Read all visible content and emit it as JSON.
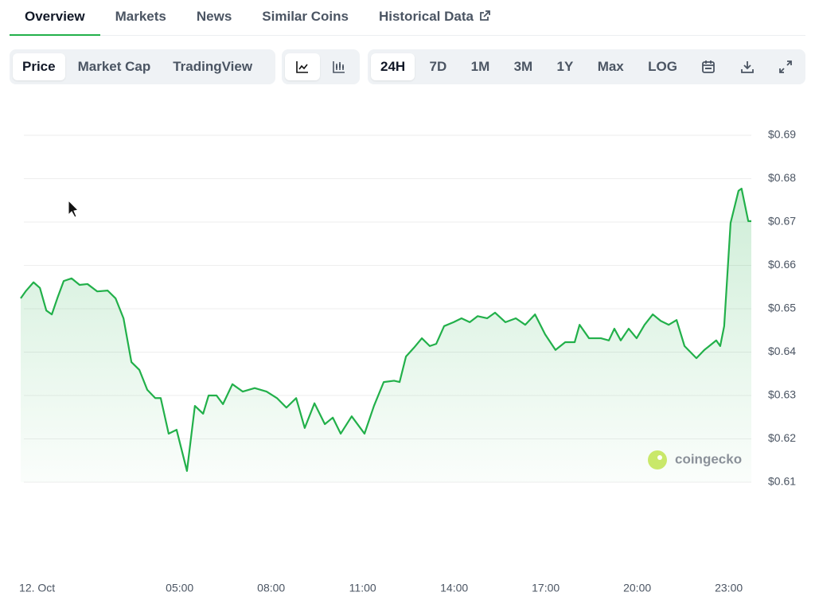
{
  "tabs": [
    "Overview",
    "Markets",
    "News",
    "Similar Coins",
    "Historical Data"
  ],
  "chart_tabs": [
    "Price",
    "Market Cap",
    "TradingView"
  ],
  "ranges": [
    "24H",
    "7D",
    "1M",
    "3M",
    "1Y",
    "Max",
    "LOG"
  ],
  "watermark": "coingecko",
  "chart_data": {
    "type": "line",
    "x": [
      -0.21,
      -0.05,
      0.21,
      0.42,
      0.63,
      0.81,
      0.99,
      1.2,
      1.46,
      1.72,
      1.98,
      2.3,
      2.64,
      2.9,
      3.16,
      3.42,
      3.68,
      3.94,
      4.2,
      4.38,
      4.64,
      4.9,
      5.24,
      5.5,
      5.77,
      5.95,
      6.21,
      6.42,
      6.73,
      7.07,
      7.46,
      7.85,
      8.19,
      8.5,
      8.82,
      9.1,
      9.42,
      9.76,
      10.02,
      10.28,
      10.64,
      11.06,
      11.37,
      11.69,
      12.03,
      12.21,
      12.42,
      12.68,
      12.94,
      13.2,
      13.41,
      13.67,
      13.98,
      14.24,
      14.51,
      14.77,
      15.08,
      15.34,
      15.68,
      16.02,
      16.33,
      16.65,
      16.98,
      17.32,
      17.64,
      17.95,
      18.11,
      18.42,
      18.81,
      19.07,
      19.25,
      19.46,
      19.72,
      19.98,
      20.24,
      20.51,
      20.77,
      21.03,
      21.29,
      21.55,
      21.94,
      22.2,
      22.59,
      22.72,
      22.85,
      23.06,
      23.32,
      23.42,
      23.64,
      23.74
    ],
    "series": [
      {
        "color": "#22b04a",
        "values": [
          0.6524,
          0.654,
          0.6561,
          0.6548,
          0.6496,
          0.6487,
          0.6524,
          0.6564,
          0.657,
          0.6555,
          0.6557,
          0.654,
          0.6542,
          0.6524,
          0.6478,
          0.6377,
          0.6359,
          0.6313,
          0.6294,
          0.6294,
          0.6212,
          0.6221,
          0.6126,
          0.6276,
          0.6258,
          0.63,
          0.63,
          0.628,
          0.6326,
          0.6309,
          0.6317,
          0.6309,
          0.6294,
          0.6272,
          0.6294,
          0.6225,
          0.6282,
          0.6234,
          0.6249,
          0.6212,
          0.6252,
          0.6212,
          0.6276,
          0.6331,
          0.6334,
          0.6331,
          0.639,
          0.641,
          0.6432,
          0.6414,
          0.6419,
          0.646,
          0.6469,
          0.6478,
          0.6469,
          0.6483,
          0.6478,
          0.6491,
          0.6469,
          0.6478,
          0.6463,
          0.6487,
          0.6441,
          0.6405,
          0.6423,
          0.6423,
          0.6463,
          0.6432,
          0.6432,
          0.6427,
          0.6454,
          0.6427,
          0.6454,
          0.6432,
          0.6463,
          0.6487,
          0.6472,
          0.6463,
          0.6474,
          0.6414,
          0.6386,
          0.6405,
          0.6427,
          0.6414,
          0.646,
          0.6698,
          0.6772,
          0.6777,
          0.6702,
          0.6702
        ]
      }
    ],
    "xlim": [
      -0.21,
      23.74
    ],
    "xticks": [
      {
        "value": 0,
        "label": "12. Oct"
      },
      {
        "value": 5,
        "label": "05:00"
      },
      {
        "value": 8,
        "label": "08:00"
      },
      {
        "value": 11,
        "label": "11:00"
      },
      {
        "value": 14,
        "label": "14:00"
      },
      {
        "value": 17,
        "label": "17:00"
      },
      {
        "value": 20,
        "label": "20:00"
      },
      {
        "value": 23,
        "label": "23:00"
      }
    ],
    "ylim": [
      0.61,
      0.69
    ],
    "yticks": [
      {
        "value": 0.61,
        "label": "$0.61"
      },
      {
        "value": 0.62,
        "label": "$0.62"
      },
      {
        "value": 0.63,
        "label": "$0.63"
      },
      {
        "value": 0.64,
        "label": "$0.64"
      },
      {
        "value": 0.65,
        "label": "$0.65"
      },
      {
        "value": 0.66,
        "label": "$0.66"
      },
      {
        "value": 0.67,
        "label": "$0.67"
      },
      {
        "value": 0.68,
        "label": "$0.68"
      },
      {
        "value": 0.69,
        "label": "$0.69"
      }
    ],
    "grid": true
  }
}
